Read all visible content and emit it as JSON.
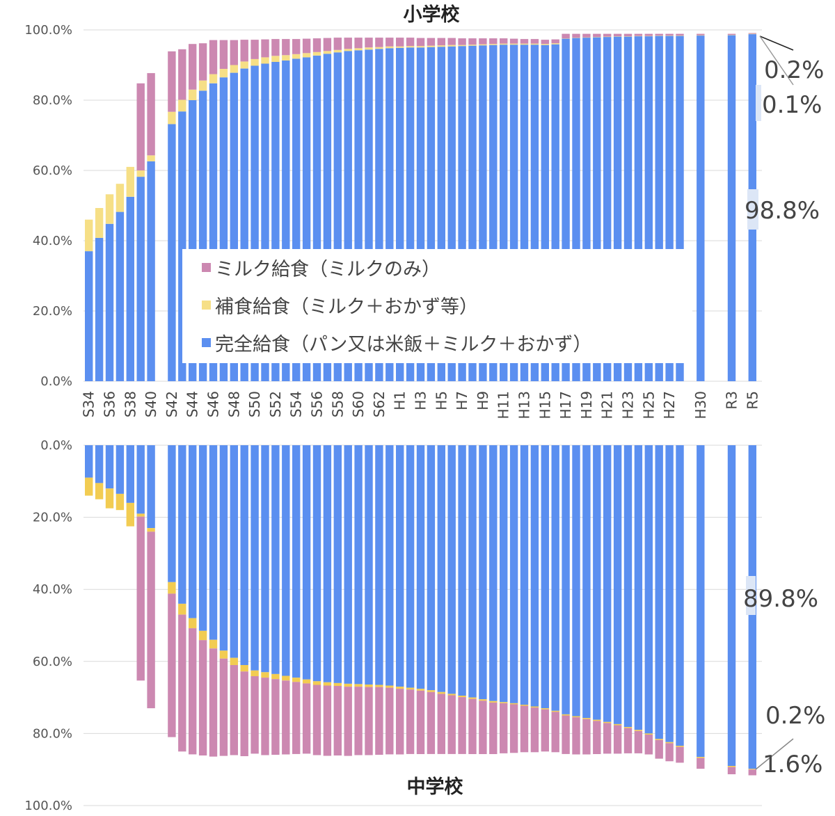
{
  "chart_data": [
    {
      "type": "bar",
      "stacked": true,
      "title": "小学校",
      "orientation": "up",
      "ylim": [
        0,
        100
      ],
      "yticks": [
        "0.0%",
        "20.0%",
        "40.0%",
        "60.0%",
        "80.0%",
        "100.0%"
      ],
      "grid": true,
      "legend_position": "center",
      "categories": [
        "S34",
        "S35",
        "S36",
        "S37",
        "S38",
        "S39",
        "S40",
        "S41",
        "S42",
        "S43",
        "S44",
        "S45",
        "S46",
        "S47",
        "S48",
        "S49",
        "S50",
        "S51",
        "S52",
        "S53",
        "S54",
        "S55",
        "S56",
        "S57",
        "S58",
        "S59",
        "S60",
        "S61",
        "S62",
        "S63",
        "H1",
        "H2",
        "H3",
        "H4",
        "H5",
        "H6",
        "H7",
        "H8",
        "H9",
        "H10",
        "H11",
        "H12",
        "H13",
        "H14",
        "H15",
        "H16",
        "H17",
        "H18",
        "H19",
        "H20",
        "H21",
        "H22",
        "H23",
        "H24",
        "H25",
        "H26",
        "H27",
        "H28",
        "H29",
        "H30",
        "H31",
        "R2",
        "R3",
        "R4",
        "R5"
      ],
      "tick_labels": [
        "S34",
        "S36",
        "S38",
        "S40",
        "S42",
        "S44",
        "S46",
        "S48",
        "S50",
        "S52",
        "S54",
        "S56",
        "S58",
        "S60",
        "S62",
        "H1",
        "H3",
        "H5",
        "H7",
        "H9",
        "H11",
        "H13",
        "H15",
        "H17",
        "H19",
        "H21",
        "H23",
        "H25",
        "H27",
        "H30",
        "R3",
        "R5"
      ],
      "series": [
        {
          "name": "完全給食（パン又は米飯＋ミルク＋おかず）",
          "color": "#5b8ff0",
          "values": [
            37.0,
            40.8,
            44.8,
            48.2,
            52.5,
            58.2,
            62.6,
            null,
            73.2,
            76.8,
            80.0,
            82.7,
            84.8,
            86.5,
            87.8,
            89.0,
            89.8,
            90.4,
            90.9,
            91.3,
            91.8,
            92.2,
            92.7,
            93.2,
            93.6,
            94.0,
            94.2,
            94.4,
            94.6,
            94.8,
            94.9,
            95.0,
            95.0,
            95.1,
            95.2,
            95.3,
            95.4,
            95.5,
            95.6,
            95.7,
            95.8,
            95.8,
            95.8,
            95.8,
            95.7,
            95.9,
            97.5,
            97.7,
            97.8,
            97.9,
            98.0,
            98.1,
            98.1,
            98.2,
            98.2,
            98.3,
            98.3,
            98.3,
            null,
            98.4,
            null,
            null,
            98.5,
            null,
            98.8
          ]
        },
        {
          "name": "補食給食（ミルク＋おかず等）",
          "color": "#f6df86",
          "values": [
            9.0,
            8.5,
            8.4,
            8.0,
            8.5,
            1.8,
            1.7,
            null,
            3.5,
            3.3,
            3.0,
            2.9,
            2.6,
            2.4,
            2.2,
            2.0,
            1.9,
            1.8,
            1.7,
            1.5,
            1.3,
            1.2,
            1.0,
            0.8,
            0.7,
            0.6,
            0.6,
            0.6,
            0.5,
            0.5,
            0.4,
            0.4,
            0.4,
            0.4,
            0.4,
            0.4,
            0.3,
            0.3,
            0.3,
            0.3,
            0.3,
            0.3,
            0.3,
            0.3,
            0.3,
            0.3,
            0.1,
            0.1,
            0.1,
            0.1,
            0.1,
            0.1,
            0.1,
            0.1,
            0.1,
            0.1,
            0.1,
            0.1,
            null,
            0.1,
            null,
            null,
            0.1,
            null,
            0.1
          ]
        },
        {
          "name": "ミルク給食（ミルクのみ）",
          "color": "#cc88b1",
          "values": [
            0,
            0,
            0,
            0,
            0,
            24.8,
            23.4,
            null,
            17.2,
            14.4,
            13.0,
            10.6,
            9.7,
            8.2,
            7.1,
            6.2,
            5.5,
            5.1,
            4.8,
            4.6,
            4.3,
            4.1,
            3.9,
            3.7,
            3.5,
            3.2,
            3.0,
            2.8,
            2.7,
            2.5,
            2.5,
            2.4,
            2.3,
            2.2,
            2.1,
            2.0,
            1.9,
            1.8,
            1.7,
            1.6,
            1.5,
            1.4,
            1.3,
            1.3,
            1.2,
            1.1,
            1.3,
            1.1,
            1.0,
            0.9,
            0.8,
            0.7,
            0.7,
            0.6,
            0.6,
            0.5,
            0.5,
            0.5,
            null,
            0.4,
            null,
            null,
            0.3,
            null,
            0.2
          ]
        }
      ],
      "annotations": [
        "98.8%",
        "0.1%",
        "0.2%"
      ]
    },
    {
      "type": "bar",
      "stacked": true,
      "title": "中学校",
      "orientation": "down",
      "ylim": [
        0,
        100
      ],
      "yticks": [
        "0.0%",
        "20.0%",
        "40.0%",
        "60.0%",
        "80.0%",
        "100.0%"
      ],
      "grid": true,
      "categories": [
        "S34",
        "S35",
        "S36",
        "S37",
        "S38",
        "S39",
        "S40",
        "S41",
        "S42",
        "S43",
        "S44",
        "S45",
        "S46",
        "S47",
        "S48",
        "S49",
        "S50",
        "S51",
        "S52",
        "S53",
        "S54",
        "S55",
        "S56",
        "S57",
        "S58",
        "S59",
        "S60",
        "S61",
        "S62",
        "S63",
        "H1",
        "H2",
        "H3",
        "H4",
        "H5",
        "H6",
        "H7",
        "H8",
        "H9",
        "H10",
        "H11",
        "H12",
        "H13",
        "H14",
        "H15",
        "H16",
        "H17",
        "H18",
        "H19",
        "H20",
        "H21",
        "H22",
        "H23",
        "H24",
        "H25",
        "H26",
        "H27",
        "H28",
        "H29",
        "H30",
        "H31",
        "R2",
        "R3",
        "R4",
        "R5"
      ],
      "series": [
        {
          "name": "完全給食（パン又は米飯＋ミルク＋おかず）",
          "color": "#5b8ff0",
          "values": [
            9.0,
            10.5,
            12.0,
            13.5,
            16.0,
            19.0,
            23.0,
            null,
            38.0,
            44.0,
            48.0,
            51.5,
            54.0,
            57.0,
            59.0,
            61.0,
            62.5,
            63.0,
            63.5,
            64.0,
            64.5,
            65.0,
            65.5,
            65.8,
            66.0,
            66.2,
            66.3,
            66.4,
            66.5,
            66.7,
            67.0,
            67.3,
            67.6,
            68.0,
            68.5,
            69.0,
            69.5,
            70.0,
            70.5,
            71.0,
            71.3,
            71.6,
            72.0,
            72.5,
            73.0,
            73.7,
            74.7,
            75.2,
            75.7,
            76.2,
            76.8,
            77.4,
            78.2,
            79.0,
            80.0,
            81.5,
            82.4,
            83.4,
            null,
            86.5,
            null,
            null,
            89.0,
            null,
            89.8
          ]
        },
        {
          "name": "補食給食（ミルク＋おかず等）",
          "color": "#f2cc52",
          "values": [
            5.0,
            4.5,
            5.5,
            4.5,
            6.5,
            0.8,
            1.0,
            null,
            3.2,
            3.0,
            2.8,
            2.6,
            2.4,
            2.2,
            2.0,
            1.8,
            1.6,
            1.5,
            1.4,
            1.3,
            1.2,
            1.1,
            1.0,
            0.9,
            0.8,
            0.8,
            0.7,
            0.7,
            0.6,
            0.6,
            0.6,
            0.5,
            0.5,
            0.5,
            0.5,
            0.4,
            0.4,
            0.4,
            0.4,
            0.4,
            0.3,
            0.3,
            0.3,
            0.3,
            0.3,
            0.3,
            0.3,
            0.3,
            0.3,
            0.3,
            0.3,
            0.3,
            0.3,
            0.3,
            0.3,
            0.3,
            0.3,
            0.3,
            null,
            0.3,
            null,
            null,
            0.3,
            null,
            0.2
          ]
        },
        {
          "name": "ミルク給食（ミルクのみ）",
          "color": "#cc88b1",
          "values": [
            0,
            0,
            0,
            0,
            0,
            45.5,
            49.0,
            null,
            39.8,
            38.0,
            35.0,
            32.0,
            30.0,
            27.0,
            25.0,
            23.5,
            21.5,
            21.5,
            21.0,
            20.5,
            20.0,
            19.5,
            19.5,
            19.5,
            19.3,
            19.2,
            19.0,
            18.9,
            18.8,
            18.5,
            18.2,
            17.9,
            17.6,
            17.2,
            16.7,
            16.3,
            15.8,
            15.3,
            14.8,
            14.3,
            13.9,
            13.5,
            12.9,
            12.4,
            11.7,
            11.2,
            10.7,
            10.3,
            9.8,
            9.2,
            8.5,
            7.9,
            7.0,
            6.2,
            5.5,
            5.2,
            5.0,
            4.4,
            null,
            3.0,
            null,
            null,
            2.0,
            null,
            1.6
          ]
        }
      ],
      "annotations": [
        "89.8%",
        "0.2%",
        "1.6%"
      ]
    }
  ]
}
